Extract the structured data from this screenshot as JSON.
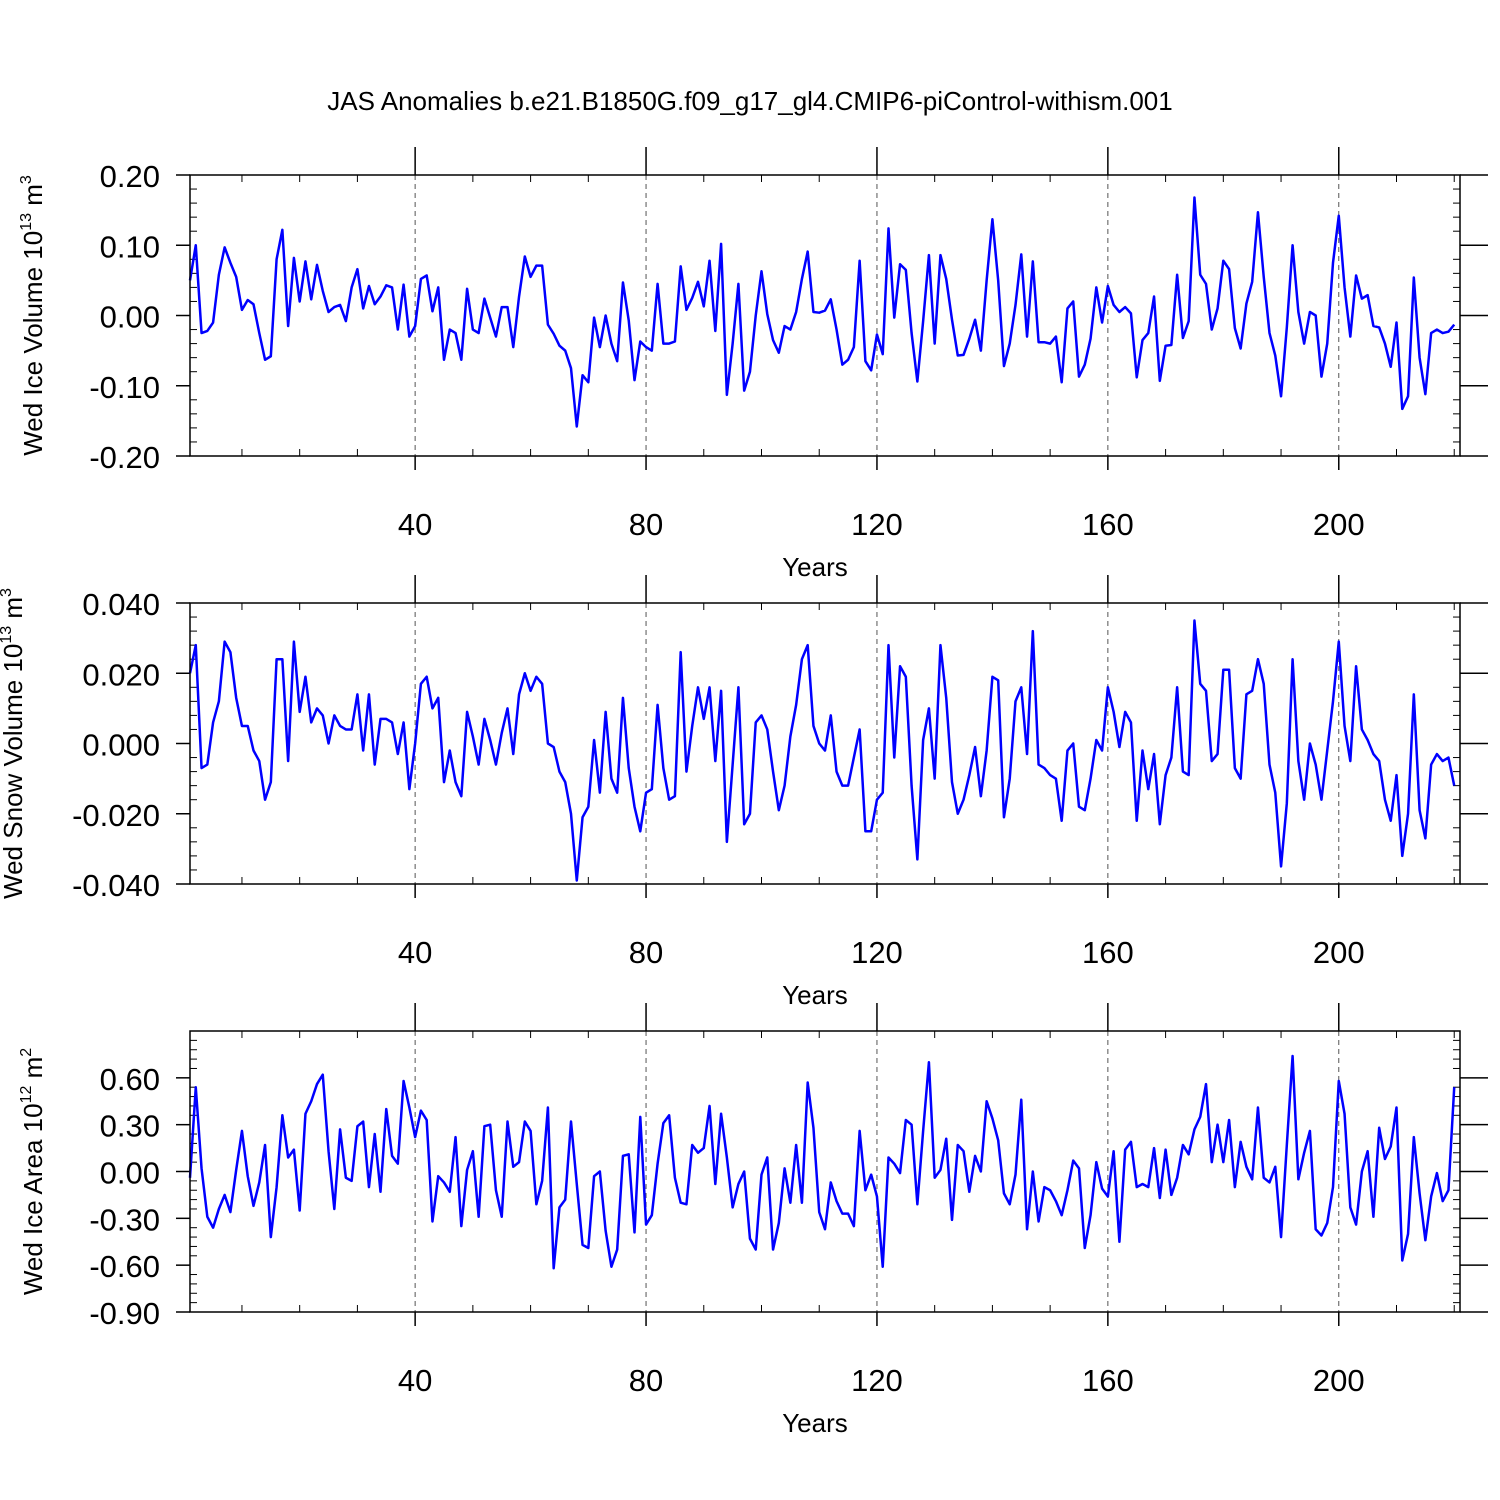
{
  "title": "JAS Anomalies b.e21.B1850G.f09_g17_gl4.CMIP6-piControl-withism.001",
  "colors": {
    "line": "#0000ff",
    "axis": "#000000",
    "grid": "#555555"
  },
  "chart_data": [
    {
      "type": "line",
      "ylabel_main": "Wed Ice Volume 10",
      "ylabel_exp": "13",
      "ylabel_unit": " m",
      "ylabel_unit_exp": "3",
      "xlabel": "Years",
      "xlim": [
        1,
        221
      ],
      "ylim": [
        -0.2,
        0.2
      ],
      "xticks": [
        40,
        80,
        120,
        160,
        200
      ],
      "xtick_labels": [
        "40",
        "80",
        "120",
        "160",
        "200"
      ],
      "yticks": [
        0.2,
        0.1,
        0.0,
        -0.1,
        -0.2
      ],
      "ytick_labels": [
        "0.20",
        "0.10",
        "0.00",
        "-0.10",
        "-0.20"
      ],
      "grid": "dashed vertical at major x ticks",
      "series": [
        {
          "values": [
            0.05,
            0.1,
            -0.025,
            -0.022,
            -0.01,
            0.058,
            0.097,
            0.075,
            0.055,
            0.008,
            0.022,
            0.016,
            -0.025,
            -0.063,
            -0.058,
            0.08,
            0.122,
            -0.015,
            0.082,
            0.02,
            0.077,
            0.023,
            0.072,
            0.035,
            0.005,
            0.012,
            0.015,
            -0.008,
            0.04,
            0.066,
            0.01,
            0.042,
            0.016,
            0.027,
            0.043,
            0.04,
            -0.02,
            0.044,
            -0.03,
            -0.015,
            0.052,
            0.057,
            0.006,
            0.04,
            -0.063,
            -0.02,
            -0.025,
            -0.063,
            0.038,
            -0.02,
            -0.025,
            0.024,
            -0.003,
            -0.03,
            0.012,
            0.012,
            -0.045,
            0.027,
            0.084,
            0.055,
            0.071,
            0.071,
            -0.013,
            -0.026,
            -0.043,
            -0.05,
            -0.075,
            -0.158,
            -0.085,
            -0.095,
            -0.003,
            -0.045,
            0.0,
            -0.04,
            -0.065,
            0.047,
            -0.007,
            -0.092,
            -0.037,
            -0.045,
            -0.05,
            0.045,
            -0.04,
            -0.04,
            -0.037,
            0.07,
            0.008,
            0.025,
            0.048,
            0.013,
            0.078,
            -0.022,
            0.102,
            -0.113,
            -0.04,
            0.045,
            -0.107,
            -0.08,
            0.0,
            0.063,
            0.002,
            -0.035,
            -0.053,
            -0.015,
            -0.02,
            0.005,
            0.052,
            0.091,
            0.005,
            0.004,
            0.007,
            0.023,
            -0.02,
            -0.07,
            -0.063,
            -0.045,
            0.078,
            -0.065,
            -0.078,
            -0.027,
            -0.055,
            0.124,
            -0.003,
            0.073,
            0.065,
            -0.025,
            -0.094,
            -0.008,
            0.086,
            -0.04,
            0.086,
            0.052,
            -0.006,
            -0.057,
            -0.056,
            -0.033,
            -0.006,
            -0.05,
            0.05,
            0.137,
            0.05,
            -0.072,
            -0.04,
            0.015,
            0.087,
            -0.03,
            0.077,
            -0.038,
            -0.038,
            -0.04,
            -0.03,
            -0.095,
            0.01,
            0.02,
            -0.087,
            -0.07,
            -0.033,
            0.04,
            -0.01,
            0.042,
            0.015,
            0.005,
            0.012,
            0.003,
            -0.088,
            -0.035,
            -0.025,
            0.027,
            -0.093,
            -0.043,
            -0.042,
            0.058,
            -0.032,
            -0.008,
            0.168,
            0.058,
            0.045,
            -0.02,
            0.01,
            0.078,
            0.066,
            -0.018,
            -0.047,
            0.017,
            0.048,
            0.147,
            0.055,
            -0.025,
            -0.057,
            -0.115,
            -0.017,
            0.1,
            0.005,
            -0.04,
            0.005,
            0.0,
            -0.087,
            -0.04,
            0.075,
            0.142,
            0.04,
            -0.03,
            0.057,
            0.024,
            0.029,
            -0.015,
            -0.017,
            -0.04,
            -0.073,
            -0.01,
            -0.133,
            -0.115,
            0.054,
            -0.06,
            -0.112,
            -0.025,
            -0.02,
            -0.025,
            -0.023,
            -0.013
          ]
        }
      ]
    },
    {
      "type": "line",
      "ylabel_main": "Wed Snow Volume 10",
      "ylabel_exp": "13",
      "ylabel_unit": " m",
      "ylabel_unit_exp": "3",
      "xlabel": "Years",
      "xlim": [
        1,
        221
      ],
      "ylim": [
        -0.04,
        0.04
      ],
      "xticks": [
        40,
        80,
        120,
        160,
        200
      ],
      "xtick_labels": [
        "40",
        "80",
        "120",
        "160",
        "200"
      ],
      "yticks": [
        0.04,
        0.02,
        0.0,
        -0.02,
        -0.04
      ],
      "ytick_labels": [
        "0.040",
        "0.020",
        "0.000",
        "-0.020",
        "-0.040"
      ],
      "grid": "dashed vertical at major x ticks",
      "series": [
        {
          "values": [
            0.02,
            0.028,
            -0.007,
            -0.006,
            0.006,
            0.012,
            0.029,
            0.026,
            0.013,
            0.005,
            0.005,
            -0.002,
            -0.005,
            -0.016,
            -0.011,
            0.024,
            0.024,
            -0.005,
            0.029,
            0.009,
            0.019,
            0.006,
            0.01,
            0.008,
            0.0,
            0.008,
            0.005,
            0.004,
            0.004,
            0.014,
            -0.002,
            0.014,
            -0.006,
            0.007,
            0.007,
            0.006,
            -0.003,
            0.006,
            -0.013,
            0.0,
            0.017,
            0.019,
            0.01,
            0.013,
            -0.011,
            -0.002,
            -0.011,
            -0.015,
            0.009,
            0.002,
            -0.006,
            0.007,
            0.001,
            -0.006,
            0.003,
            0.01,
            -0.003,
            0.014,
            0.02,
            0.015,
            0.019,
            0.017,
            0.0,
            -0.001,
            -0.008,
            -0.011,
            -0.02,
            -0.039,
            -0.021,
            -0.018,
            0.001,
            -0.014,
            0.009,
            -0.01,
            -0.014,
            0.013,
            -0.007,
            -0.018,
            -0.025,
            -0.014,
            -0.013,
            0.011,
            -0.007,
            -0.016,
            -0.015,
            0.026,
            -0.008,
            0.005,
            0.016,
            0.007,
            0.016,
            -0.005,
            0.015,
            -0.028,
            -0.006,
            0.016,
            -0.023,
            -0.02,
            0.006,
            0.008,
            0.004,
            -0.008,
            -0.019,
            -0.012,
            0.002,
            0.011,
            0.024,
            0.028,
            0.005,
            0.0,
            -0.002,
            0.008,
            -0.008,
            -0.012,
            -0.012,
            -0.004,
            0.004,
            -0.025,
            -0.025,
            -0.016,
            -0.014,
            0.028,
            -0.004,
            0.022,
            0.019,
            -0.012,
            -0.033,
            0.001,
            0.01,
            -0.01,
            0.028,
            0.013,
            -0.011,
            -0.02,
            -0.016,
            -0.009,
            -0.001,
            -0.015,
            -0.002,
            0.019,
            0.018,
            -0.021,
            -0.01,
            0.012,
            0.016,
            -0.003,
            0.032,
            -0.006,
            -0.007,
            -0.009,
            -0.01,
            -0.022,
            -0.002,
            0.0,
            -0.018,
            -0.019,
            -0.01,
            0.001,
            -0.002,
            0.016,
            0.009,
            -0.001,
            0.009,
            0.006,
            -0.022,
            -0.002,
            -0.013,
            -0.003,
            -0.023,
            -0.009,
            -0.004,
            0.016,
            -0.008,
            -0.009,
            0.035,
            0.017,
            0.015,
            -0.005,
            -0.003,
            0.021,
            0.021,
            -0.007,
            -0.01,
            0.014,
            0.015,
            0.024,
            0.017,
            -0.006,
            -0.014,
            -0.035,
            -0.017,
            0.024,
            -0.005,
            -0.016,
            0.0,
            -0.006,
            -0.016,
            -0.002,
            0.012,
            0.029,
            0.005,
            -0.005,
            0.022,
            0.004,
            0.001,
            -0.003,
            -0.005,
            -0.016,
            -0.022,
            -0.009,
            -0.032,
            -0.02,
            0.014,
            -0.019,
            -0.027,
            -0.006,
            -0.003,
            -0.005,
            -0.004,
            -0.012
          ]
        }
      ]
    },
    {
      "type": "line",
      "ylabel_main": "Wed Ice Area 10",
      "ylabel_exp": "12",
      "ylabel_unit": " m",
      "ylabel_unit_exp": "2",
      "xlabel": "Years",
      "xlim": [
        1,
        221
      ],
      "ylim": [
        -0.9,
        0.9
      ],
      "xticks": [
        40,
        80,
        120,
        160,
        200
      ],
      "xtick_labels": [
        "40",
        "80",
        "120",
        "160",
        "200"
      ],
      "yticks": [
        0.6,
        0.3,
        0.0,
        -0.3,
        -0.6,
        -0.9
      ],
      "ytick_labels": [
        "0.60",
        "0.30",
        "0.00",
        "-0.30",
        "-0.60",
        "-0.90"
      ],
      "grid": "dashed vertical at major x ticks",
      "series": [
        {
          "values": [
            -0.04,
            0.54,
            0.02,
            -0.29,
            -0.36,
            -0.24,
            -0.15,
            -0.26,
            0.01,
            0.26,
            -0.03,
            -0.22,
            -0.07,
            0.17,
            -0.42,
            -0.1,
            0.36,
            0.09,
            0.14,
            -0.25,
            0.37,
            0.45,
            0.56,
            0.62,
            0.13,
            -0.24,
            0.27,
            -0.04,
            -0.06,
            0.29,
            0.32,
            -0.1,
            0.24,
            -0.13,
            0.4,
            0.1,
            0.05,
            0.58,
            0.41,
            0.22,
            0.39,
            0.33,
            -0.32,
            -0.03,
            -0.07,
            -0.13,
            0.22,
            -0.35,
            0.01,
            0.13,
            -0.29,
            0.29,
            0.3,
            -0.12,
            -0.29,
            0.32,
            0.03,
            0.06,
            0.32,
            0.26,
            -0.21,
            -0.06,
            0.41,
            -0.62,
            -0.23,
            -0.18,
            0.32,
            -0.08,
            -0.47,
            -0.49,
            -0.03,
            0.0,
            -0.38,
            -0.61,
            -0.5,
            0.1,
            0.11,
            -0.39,
            0.35,
            -0.34,
            -0.28,
            0.05,
            0.31,
            0.36,
            -0.04,
            -0.2,
            -0.21,
            0.17,
            0.12,
            0.15,
            0.42,
            -0.08,
            0.37,
            0.09,
            -0.23,
            -0.08,
            0.0,
            -0.43,
            -0.5,
            -0.02,
            0.09,
            -0.5,
            -0.33,
            0.02,
            -0.2,
            0.17,
            -0.2,
            0.57,
            0.28,
            -0.26,
            -0.37,
            -0.07,
            -0.19,
            -0.27,
            -0.27,
            -0.35,
            0.26,
            -0.12,
            -0.02,
            -0.16,
            -0.61,
            0.09,
            0.05,
            -0.01,
            0.33,
            0.3,
            -0.21,
            0.26,
            0.7,
            -0.04,
            0.01,
            0.21,
            -0.31,
            0.17,
            0.13,
            -0.13,
            0.1,
            0.0,
            0.45,
            0.34,
            0.2,
            -0.14,
            -0.21,
            -0.02,
            0.46,
            -0.37,
            0.0,
            -0.32,
            -0.1,
            -0.12,
            -0.19,
            -0.28,
            -0.12,
            0.07,
            0.02,
            -0.49,
            -0.28,
            0.06,
            -0.11,
            -0.16,
            0.13,
            -0.45,
            0.14,
            0.19,
            -0.1,
            -0.08,
            -0.1,
            0.15,
            -0.17,
            0.14,
            -0.15,
            -0.04,
            0.17,
            0.11,
            0.27,
            0.35,
            0.56,
            0.06,
            0.3,
            0.06,
            0.33,
            -0.1,
            0.19,
            0.03,
            -0.05,
            0.41,
            -0.04,
            -0.07,
            0.03,
            -0.42,
            0.17,
            0.74,
            -0.05,
            0.12,
            0.26,
            -0.37,
            -0.41,
            -0.33,
            -0.1,
            0.58,
            0.37,
            -0.23,
            -0.34,
            0.0,
            0.13,
            -0.29,
            0.28,
            0.08,
            0.16,
            0.41,
            -0.57,
            -0.4,
            0.22,
            -0.14,
            -0.44,
            -0.16,
            -0.01,
            -0.19,
            -0.12,
            0.54
          ]
        }
      ]
    }
  ]
}
